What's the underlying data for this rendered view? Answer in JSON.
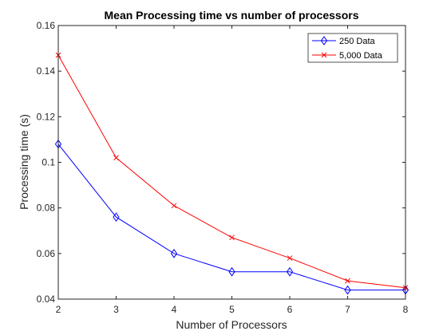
{
  "chart_data": {
    "type": "line",
    "title": "Mean Processing time vs number of processors",
    "xlabel": "Number of Processors",
    "ylabel": "Processing time (s)",
    "x": [
      2,
      3,
      4,
      5,
      6,
      7,
      8
    ],
    "xlim": [
      2,
      8
    ],
    "ylim": [
      0.04,
      0.16
    ],
    "xticks": [
      "2",
      "3",
      "4",
      "5",
      "6",
      "7",
      "8"
    ],
    "yticks": [
      "0.04",
      "0.06",
      "0.08",
      "0.1",
      "0.12",
      "0.14",
      "0.16"
    ],
    "grid": false,
    "legend_position": "top-right",
    "series": [
      {
        "name": "250 Data",
        "values": [
          0.108,
          0.076,
          0.06,
          0.052,
          0.052,
          0.044,
          0.044
        ],
        "color": "#0000ff",
        "marker": "diamond"
      },
      {
        "name": "5,000 Data",
        "values": [
          0.147,
          0.102,
          0.081,
          0.067,
          0.058,
          0.048,
          0.045
        ],
        "color": "#ff0000",
        "marker": "x"
      }
    ]
  }
}
